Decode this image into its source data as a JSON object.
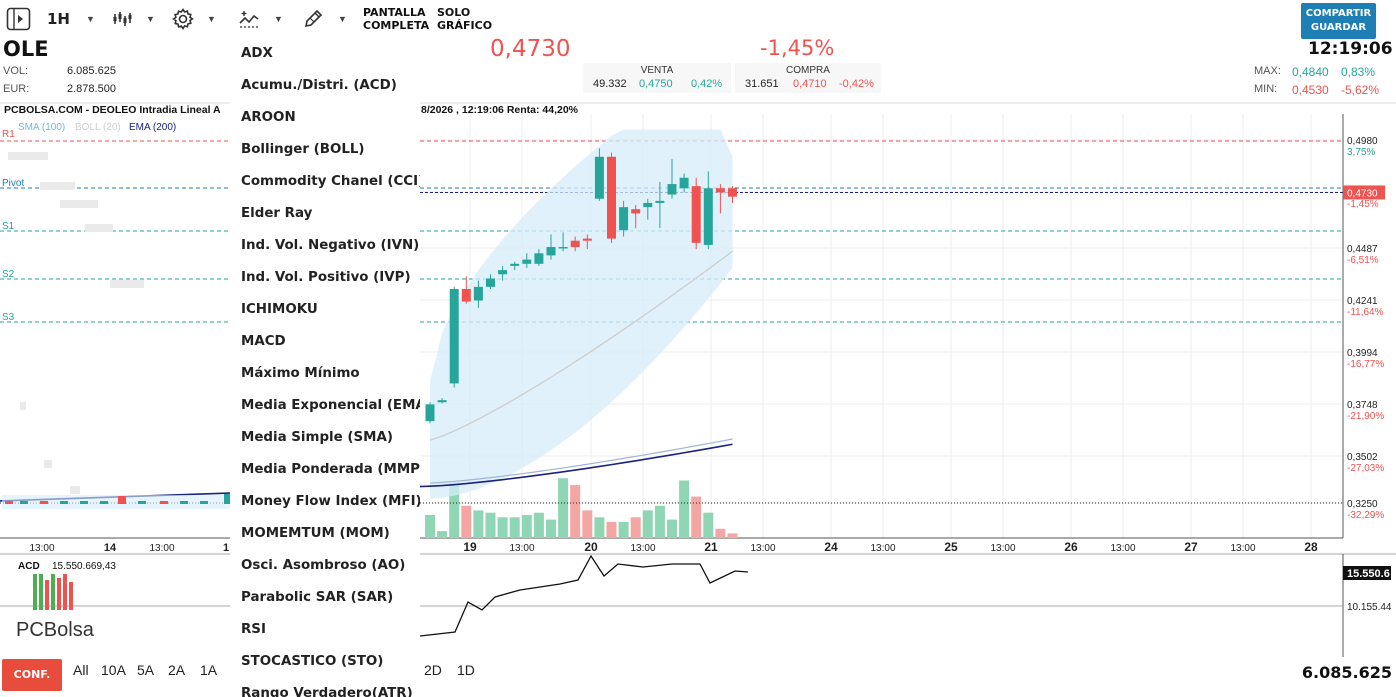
{
  "toolbar": {
    "interval": "1H",
    "fullscreen_l1": "PANTALLA",
    "fullscreen_l2": "COMPLETA",
    "chartonly_l1": "SOLO",
    "chartonly_l2": "GRÁFICO",
    "share_l1": "COMPARTIR",
    "share_l2": "GUARDAR"
  },
  "quote": {
    "ticker": "OLE",
    "vol_label": "VOL:",
    "vol": "6.085.625",
    "eur_label": "EUR:",
    "eur": "2.878.500",
    "price": "0,4730",
    "change_pct": "-1,45%",
    "time": "12:19:06",
    "sell": {
      "title": "VENTA",
      "qty": "49.332",
      "price": "0,4750",
      "pct": "0,42%"
    },
    "buy": {
      "title": "COMPRA",
      "qty": "31.651",
      "price": "0,4710",
      "pct": "-0,42%"
    },
    "max_label": "MAX:",
    "max": "0,4840",
    "max_pct": "0,83%",
    "min_label": "MIN:",
    "min": "0,4530",
    "min_pct": "-5,62%"
  },
  "chart_header": {
    "title": "PCBOLSA.COM - DEOLEO Intradia Lineal A",
    "title_right": "8/2026 , 12:19:06 Renta: 44,20%",
    "sma": "SMA (100)",
    "boll": "BOLL (20)",
    "ema": "EMA (200)"
  },
  "pivots": {
    "r1": "R1",
    "pivot": "Pivot",
    "s1": "S1",
    "s2": "S2",
    "s3": "S3"
  },
  "colors": {
    "up": "#26a69a",
    "down": "#ef5350",
    "ema": "#1a237e",
    "boll": "#d6ecfb",
    "accent": "#1e7fb5"
  },
  "menu": {
    "items": [
      "ADX",
      "Acumu./Distri. (ACD)",
      "AROON",
      "Bollinger (BOLL)",
      "Commodity Chanel (CCI)",
      "Elder Ray",
      "Ind. Vol. Negativo (IVN)",
      "Ind. Vol. Positivo (IVP)",
      "ICHIMOKU",
      "MACD",
      "Máximo Mínimo",
      "Media Exponencial (EMA)",
      "Media Simple (SMA)",
      "Media Ponderada (MMP)",
      "Money Flow Index (MFI)",
      "MOMEMTUM (MOM)",
      "Osci. Asombroso (AO)",
      "Parabolic SAR (SAR)",
      "RSI",
      "STOCASTICO (STO)",
      "Rango Verdadero(ATR)"
    ]
  },
  "acd": {
    "label": "ACD",
    "value": "15.550.669,43",
    "axis_current": "15.550.6",
    "axis_mid": "10.155.44"
  },
  "logo": "PCBolsa",
  "footer": {
    "conf": "CONF.",
    "ranges": [
      "All",
      "10A",
      "5A",
      "2A",
      "1A"
    ],
    "ranges_right": [
      "2D",
      "1D"
    ],
    "volume": "6.085.625"
  },
  "chart_data": {
    "type": "candlestick",
    "price_axis": [
      "0,4980",
      "0,4733",
      "0,4487",
      "0,4241",
      "0,3994",
      "0,3748",
      "0,3502",
      "0,3250"
    ],
    "pct_axis": [
      "3,75%",
      "-1,45%",
      "-6,51%",
      "-11,64%",
      "-16,77%",
      "-21,90%",
      "-27,03%",
      "-32,29%"
    ],
    "current_price_tag": "0,4730",
    "x_ticks_left": [
      "13:00",
      "14",
      "13:00",
      "1"
    ],
    "x_ticks": [
      "19",
      "13:00",
      "20",
      "13:00",
      "21",
      "13:00",
      "24",
      "13:00",
      "25",
      "13:00",
      "26",
      "13:00",
      "27",
      "13:00",
      "28"
    ],
    "candles": [
      {
        "o": 0.364,
        "c": 0.372,
        "h": 0.373,
        "l": 0.363
      },
      {
        "o": 0.373,
        "c": 0.374,
        "h": 0.375,
        "l": 0.3725
      },
      {
        "o": 0.382,
        "c": 0.427,
        "h": 0.428,
        "l": 0.38
      },
      {
        "o": 0.427,
        "c": 0.421,
        "h": 0.433,
        "l": 0.42
      },
      {
        "o": 0.4215,
        "c": 0.428,
        "h": 0.431,
        "l": 0.418
      },
      {
        "o": 0.428,
        "c": 0.432,
        "h": 0.434,
        "l": 0.427
      },
      {
        "o": 0.434,
        "c": 0.436,
        "h": 0.438,
        "l": 0.431
      },
      {
        "o": 0.438,
        "c": 0.439,
        "h": 0.44,
        "l": 0.436
      },
      {
        "o": 0.439,
        "c": 0.441,
        "h": 0.444,
        "l": 0.437
      },
      {
        "o": 0.439,
        "c": 0.444,
        "h": 0.446,
        "l": 0.438
      },
      {
        "o": 0.443,
        "c": 0.447,
        "h": 0.453,
        "l": 0.441
      },
      {
        "o": 0.447,
        "c": 0.447,
        "h": 0.454,
        "l": 0.445
      },
      {
        "o": 0.45,
        "c": 0.447,
        "h": 0.452,
        "l": 0.445
      },
      {
        "o": 0.451,
        "c": 0.45,
        "h": 0.453,
        "l": 0.446
      },
      {
        "o": 0.47,
        "c": 0.49,
        "h": 0.494,
        "l": 0.469
      },
      {
        "o": 0.49,
        "c": 0.451,
        "h": 0.492,
        "l": 0.449
      },
      {
        "o": 0.455,
        "c": 0.466,
        "h": 0.469,
        "l": 0.452
      },
      {
        "o": 0.465,
        "c": 0.463,
        "h": 0.467,
        "l": 0.456
      },
      {
        "o": 0.466,
        "c": 0.468,
        "h": 0.47,
        "l": 0.46
      },
      {
        "o": 0.468,
        "c": 0.469,
        "h": 0.478,
        "l": 0.456
      },
      {
        "o": 0.472,
        "c": 0.477,
        "h": 0.489,
        "l": 0.47
      },
      {
        "o": 0.475,
        "c": 0.48,
        "h": 0.482,
        "l": 0.473
      },
      {
        "o": 0.476,
        "c": 0.449,
        "h": 0.48,
        "l": 0.446
      },
      {
        "o": 0.448,
        "c": 0.475,
        "h": 0.483,
        "l": 0.446
      },
      {
        "o": 0.475,
        "c": 0.473,
        "h": 0.477,
        "l": 0.463
      },
      {
        "o": 0.475,
        "c": 0.471,
        "h": 0.476,
        "l": 0.468
      }
    ],
    "volumes": [
      10,
      3,
      24,
      14,
      12,
      11,
      9,
      9,
      10,
      11,
      8,
      26,
      23,
      12,
      9,
      7,
      7,
      9,
      12,
      14,
      8,
      25,
      18,
      11,
      4,
      2
    ],
    "y_range": [
      0.325,
      0.498
    ]
  }
}
